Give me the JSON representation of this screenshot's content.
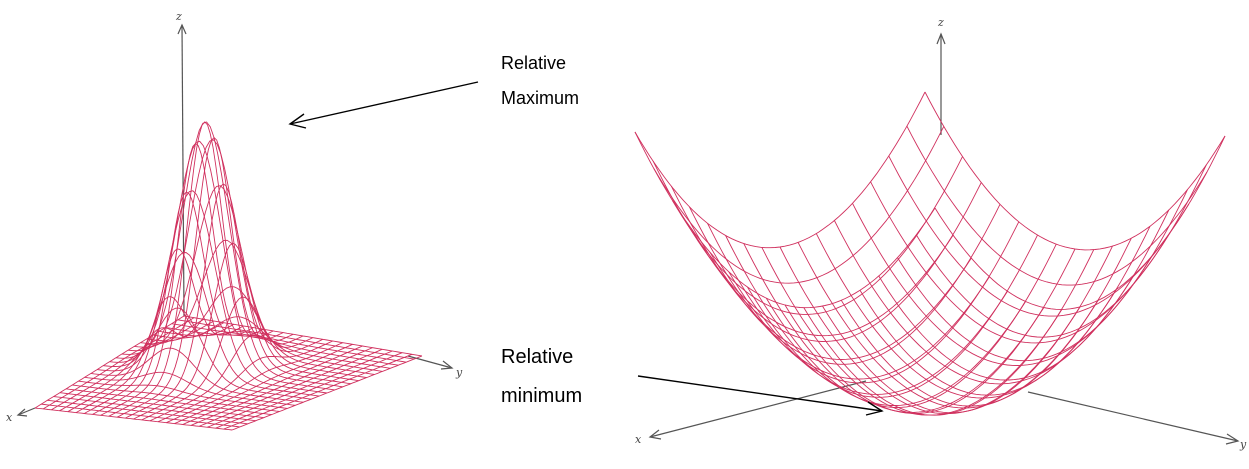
{
  "colors": {
    "mesh": "#d0305e",
    "axis": "#555555",
    "annotation": "#000000",
    "background": "#ffffff"
  },
  "left_plot": {
    "axes": {
      "x": "x",
      "y": "y",
      "z": "z"
    },
    "annotation": {
      "line1": "Relative",
      "line2": "Maximum"
    }
  },
  "right_plot": {
    "axes": {
      "x": "x",
      "y": "y",
      "z": "z"
    },
    "annotation": {
      "line1": "Relative",
      "line2": "minimum"
    }
  }
}
